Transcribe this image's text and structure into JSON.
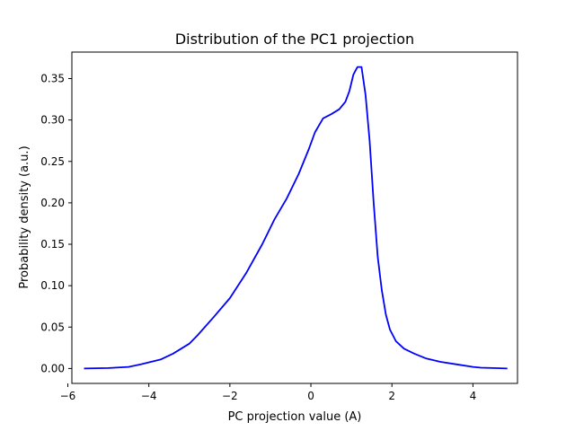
{
  "chart_data": {
    "type": "line",
    "title": "Distribution of the PC1 projection",
    "xlabel": "PC projection value (A)",
    "ylabel": "Probability density (a.u.)",
    "xlim": [
      -5.9,
      5.1
    ],
    "ylim": [
      -0.018,
      0.382
    ],
    "xticks": [
      -6,
      -4,
      -2,
      0,
      2,
      4
    ],
    "xtick_labels": [
      "−6",
      "−4",
      "−2",
      "0",
      "2",
      "4"
    ],
    "yticks": [
      0.0,
      0.05,
      0.1,
      0.15,
      0.2,
      0.25,
      0.3,
      0.35
    ],
    "ytick_labels": [
      "0.00",
      "0.05",
      "0.10",
      "0.15",
      "0.20",
      "0.25",
      "0.30",
      "0.35"
    ],
    "grid": false,
    "series": [
      {
        "color": "#0000ff",
        "points": [
          [
            -5.6,
            0.0
          ],
          [
            -5.0,
            0.0005
          ],
          [
            -4.5,
            0.002
          ],
          [
            -4.2,
            0.005
          ],
          [
            -3.7,
            0.011
          ],
          [
            -3.4,
            0.018
          ],
          [
            -3.0,
            0.03
          ],
          [
            -2.8,
            0.04
          ],
          [
            -2.4,
            0.062
          ],
          [
            -2.0,
            0.085
          ],
          [
            -1.6,
            0.115
          ],
          [
            -1.2,
            0.15
          ],
          [
            -0.9,
            0.18
          ],
          [
            -0.6,
            0.205
          ],
          [
            -0.3,
            0.235
          ],
          [
            -0.05,
            0.265
          ],
          [
            0.1,
            0.285
          ],
          [
            0.3,
            0.302
          ],
          [
            0.5,
            0.307
          ],
          [
            0.7,
            0.313
          ],
          [
            0.85,
            0.322
          ],
          [
            0.95,
            0.335
          ],
          [
            1.05,
            0.355
          ],
          [
            1.15,
            0.364
          ],
          [
            1.25,
            0.364
          ],
          [
            1.35,
            0.33
          ],
          [
            1.45,
            0.275
          ],
          [
            1.55,
            0.2
          ],
          [
            1.65,
            0.135
          ],
          [
            1.75,
            0.095
          ],
          [
            1.85,
            0.065
          ],
          [
            1.95,
            0.047
          ],
          [
            2.1,
            0.033
          ],
          [
            2.3,
            0.024
          ],
          [
            2.55,
            0.018
          ],
          [
            2.85,
            0.012
          ],
          [
            3.2,
            0.008
          ],
          [
            3.6,
            0.005
          ],
          [
            4.0,
            0.002
          ],
          [
            4.2,
            0.001
          ],
          [
            4.5,
            0.0005
          ],
          [
            4.85,
            0.0
          ]
        ]
      }
    ]
  }
}
